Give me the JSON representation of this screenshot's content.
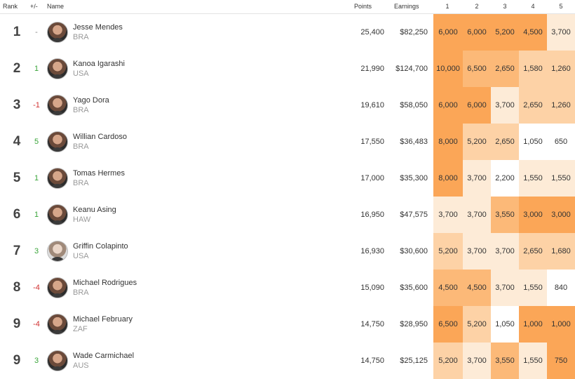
{
  "header": {
    "rank": "Rank",
    "change": "+/-",
    "name": "Name",
    "points": "Points",
    "earnings": "Earnings",
    "events": [
      "1",
      "2",
      "3",
      "4",
      "5"
    ]
  },
  "colors": {
    "heat_max": "#fba657",
    "heat_high": "#fcb978",
    "heat_mid": "#fdd2a6",
    "heat_low": "#fdebd7",
    "heat_none": "#ffffff",
    "up": "#3aa53a",
    "down": "#d03030"
  },
  "rows": [
    {
      "rank": "1",
      "change": "-",
      "name": "Jesse Mendes",
      "country": "BRA",
      "points": "25,400",
      "earnings": "$82,250",
      "events": [
        "6,000",
        "6,000",
        "5,200",
        "4,500",
        "3,700"
      ]
    },
    {
      "rank": "2",
      "change": "1",
      "name": "Kanoa Igarashi",
      "country": "USA",
      "points": "21,990",
      "earnings": "$124,700",
      "events": [
        "10,000",
        "6,500",
        "2,650",
        "1,580",
        "1,260"
      ]
    },
    {
      "rank": "3",
      "change": "-1",
      "name": "Yago Dora",
      "country": "BRA",
      "points": "19,610",
      "earnings": "$58,050",
      "events": [
        "6,000",
        "6,000",
        "3,700",
        "2,650",
        "1,260"
      ]
    },
    {
      "rank": "4",
      "change": "5",
      "name": "Willian Cardoso",
      "country": "BRA",
      "points": "17,550",
      "earnings": "$36,483",
      "events": [
        "8,000",
        "5,200",
        "2,650",
        "1,050",
        "650"
      ]
    },
    {
      "rank": "5",
      "change": "1",
      "name": "Tomas Hermes",
      "country": "BRA",
      "points": "17,000",
      "earnings": "$35,300",
      "events": [
        "8,000",
        "3,700",
        "2,200",
        "1,550",
        "1,550"
      ]
    },
    {
      "rank": "6",
      "change": "1",
      "name": "Keanu Asing",
      "country": "HAW",
      "points": "16,950",
      "earnings": "$47,575",
      "events": [
        "3,700",
        "3,700",
        "3,550",
        "3,000",
        "3,000"
      ]
    },
    {
      "rank": "7",
      "change": "3",
      "name": "Griffin Colapinto",
      "country": "USA",
      "points": "16,930",
      "earnings": "$30,600",
      "events": [
        "5,200",
        "3,700",
        "3,700",
        "2,650",
        "1,680"
      ]
    },
    {
      "rank": "8",
      "change": "-4",
      "name": "Michael Rodrigues",
      "country": "BRA",
      "points": "15,090",
      "earnings": "$35,600",
      "events": [
        "4,500",
        "4,500",
        "3,700",
        "1,550",
        "840"
      ]
    },
    {
      "rank": "9",
      "change": "-4",
      "name": "Michael February",
      "country": "ZAF",
      "points": "14,750",
      "earnings": "$28,950",
      "events": [
        "6,500",
        "5,200",
        "1,050",
        "1,000",
        "1,000"
      ]
    },
    {
      "rank": "9",
      "change": "3",
      "name": "Wade Carmichael",
      "country": "AUS",
      "points": "14,750",
      "earnings": "$25,125",
      "events": [
        "5,200",
        "3,700",
        "3,550",
        "1,550",
        "750"
      ]
    }
  ],
  "cell_colors": [
    [
      "heat_max",
      "heat_max",
      "heat_max",
      "heat_max",
      "heat_low"
    ],
    [
      "heat_max",
      "heat_high",
      "heat_high",
      "heat_mid",
      "heat_mid"
    ],
    [
      "heat_max",
      "heat_max",
      "heat_low",
      "heat_mid",
      "heat_mid"
    ],
    [
      "heat_max",
      "heat_mid",
      "heat_mid",
      "heat_none",
      "heat_none"
    ],
    [
      "heat_max",
      "heat_low",
      "heat_none",
      "heat_low",
      "heat_low"
    ],
    [
      "heat_low",
      "heat_low",
      "heat_high",
      "heat_max",
      "heat_max"
    ],
    [
      "heat_mid",
      "heat_low",
      "heat_low",
      "heat_mid",
      "heat_mid"
    ],
    [
      "heat_high",
      "heat_high",
      "heat_low",
      "heat_low",
      "heat_none"
    ],
    [
      "heat_max",
      "heat_mid",
      "heat_none",
      "heat_max",
      "heat_max"
    ],
    [
      "heat_mid",
      "heat_low",
      "heat_high",
      "heat_low",
      "heat_max"
    ]
  ]
}
